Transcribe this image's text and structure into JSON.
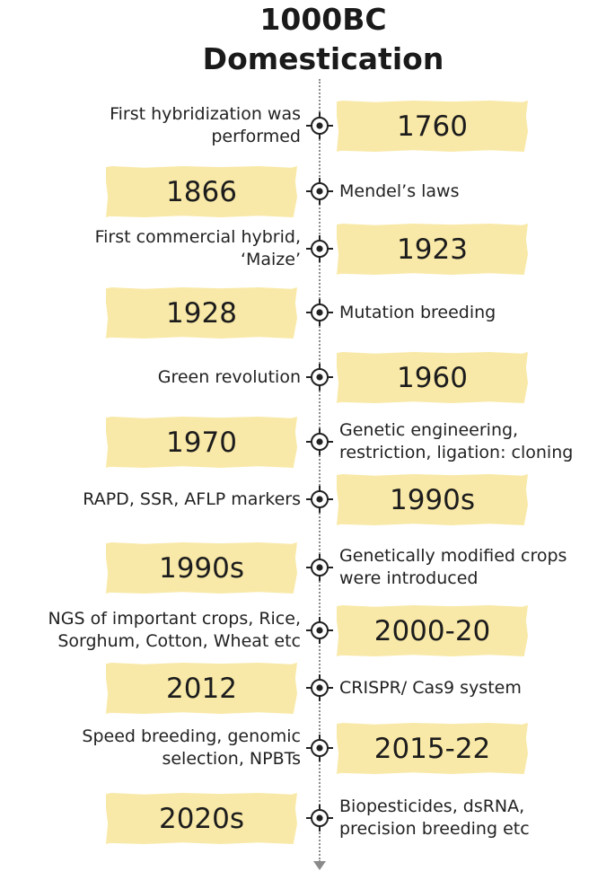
{
  "title": [
    "1000BC",
    "Domestication"
  ],
  "events": [
    {
      "year": "1760",
      "text": [
        "First hybridization was",
        "performed"
      ],
      "year_side": "right"
    },
    {
      "year": "1866",
      "text": [
        "Mendel’s laws"
      ],
      "year_side": "left"
    },
    {
      "year": "1923",
      "text": [
        "First commercial hybrid,",
        "‘Maize’"
      ],
      "year_side": "right"
    },
    {
      "year": "1928",
      "text": [
        "Mutation breeding"
      ],
      "year_side": "left"
    },
    {
      "year": "1960",
      "text": [
        "Green revolution"
      ],
      "year_side": "right"
    },
    {
      "year": "1970",
      "text": [
        "Genetic engineering,",
        "restriction, ligation: cloning"
      ],
      "year_side": "left"
    },
    {
      "year": "1990s",
      "text": [
        "RAPD, SSR, AFLP markers"
      ],
      "year_side": "right"
    },
    {
      "year": "1990s",
      "text": [
        "Genetically modified crops",
        "were introduced"
      ],
      "year_side": "left"
    },
    {
      "year": "2000-20",
      "text": [
        "NGS of important crops, Rice,",
        "Sorghum, Cotton, Wheat etc"
      ],
      "year_side": "right"
    },
    {
      "year": "2012",
      "text": [
        "CRISPR/ Cas9 system"
      ],
      "year_side": "left"
    },
    {
      "year": "2015-22",
      "text": [
        "Speed breeding, genomic",
        "selection, NPBTs"
      ],
      "year_side": "right"
    },
    {
      "year": "2020s",
      "text": [
        "Biopesticides, dsRNA,",
        "precision breeding etc"
      ],
      "year_side": "left"
    }
  ],
  "colors": {
    "box": "#f9e9a8",
    "axis": "#8a8a8a",
    "text": "#1e1e1e"
  },
  "icons": {
    "marker": "crosshair-target-icon",
    "axis_end": "arrow-down-icon"
  }
}
